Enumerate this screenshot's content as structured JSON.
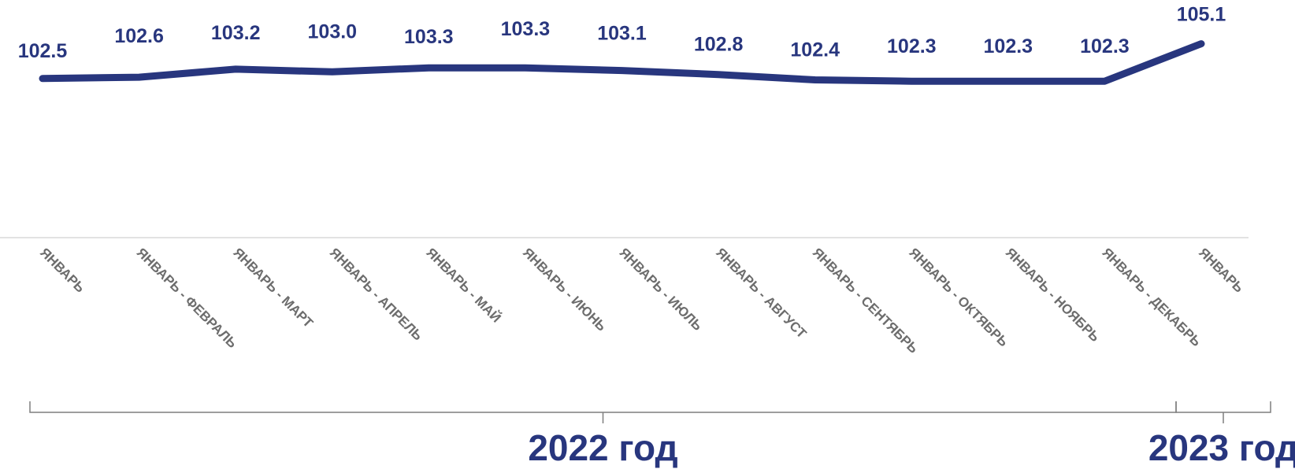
{
  "chart_data": {
    "type": "line",
    "categories": [
      "ЯНВАРЬ",
      "ЯНВАРЬ - ФЕВРАЛЬ",
      "ЯНВАРЬ - МАРТ",
      "ЯНВАРЬ - АПРЕЛЬ",
      "ЯНВАРЬ - МАЙ",
      "ЯНВАРЬ - ИЮНЬ",
      "ЯНВАРЬ - ИЮЛЬ",
      "ЯНВАРЬ - АВГУСТ",
      "ЯНВАРЬ - СЕНТЯБРЬ",
      "ЯНВАРЬ - ОКТЯБРЬ",
      "ЯНВАРЬ - НОЯБРЬ",
      "ЯНВАРЬ - ДЕКАБРЬ",
      "ЯНВАРЬ"
    ],
    "series": [
      {
        "values": [
          102.5,
          102.6,
          103.2,
          103.0,
          103.3,
          103.3,
          103.1,
          102.8,
          102.4,
          102.3,
          102.3,
          102.3,
          105.1
        ],
        "labels": [
          "102.5",
          "102.6",
          "103.2",
          "103.0",
          "103.3",
          "103.3",
          "103.1",
          "102.8",
          "102.4",
          "102.3",
          "102.3",
          "102.3",
          "105.1"
        ]
      }
    ],
    "title": "",
    "xlabel": "",
    "ylabel": "",
    "groups": [
      {
        "label": "2022 год",
        "from": 0,
        "to": 11
      },
      {
        "label": "2023 год",
        "from": 12,
        "to": 12
      }
    ],
    "grid": false,
    "legend": "none",
    "colors": {
      "line": "#28367e",
      "data_label": "#28367e",
      "tick_label": "#6d6d6d",
      "axis": "#d9d9d9",
      "bracket": "#7f7f7f",
      "year_label": "#28367e"
    }
  }
}
